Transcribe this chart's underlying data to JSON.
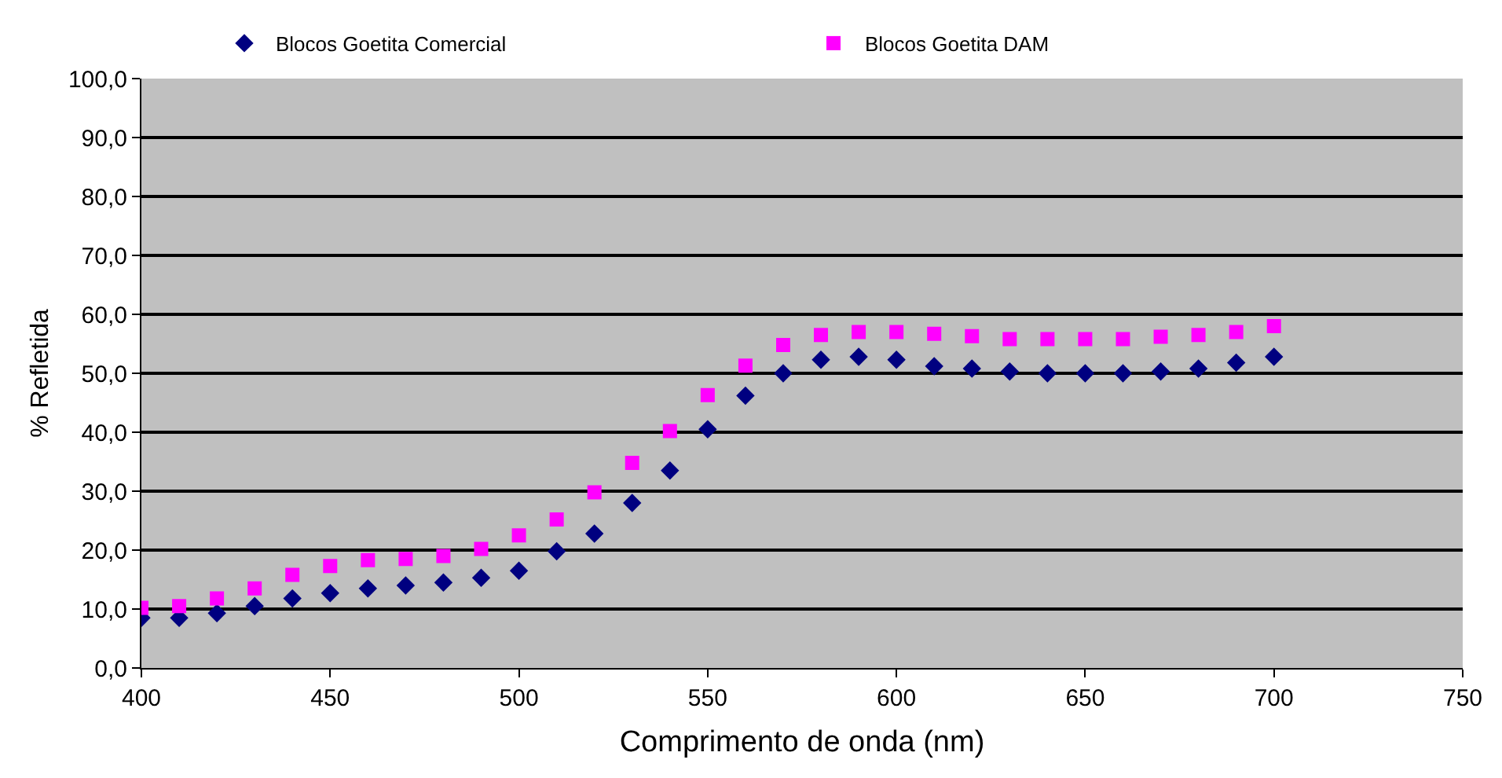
{
  "chart_data": {
    "type": "scatter",
    "xlabel": "Comprimento de onda (nm)",
    "ylabel": "% Refletida",
    "x": [
      400,
      410,
      420,
      430,
      440,
      450,
      460,
      470,
      480,
      490,
      500,
      510,
      520,
      530,
      540,
      550,
      560,
      570,
      580,
      590,
      600,
      610,
      620,
      630,
      640,
      650,
      660,
      670,
      680,
      690,
      700
    ],
    "series": [
      {
        "name": "Blocos Goetita Comercial",
        "color": "#000080",
        "marker": "diamond",
        "values": [
          8.5,
          8.5,
          9.3,
          10.5,
          11.8,
          12.7,
          13.5,
          14,
          14.5,
          15.3,
          16.5,
          19.8,
          22.8,
          28,
          33.5,
          40.5,
          46.2,
          50,
          52.3,
          52.8,
          52.3,
          51.2,
          50.8,
          50.3,
          50,
          50,
          50,
          50.3,
          50.8,
          51.8,
          52.8
        ]
      },
      {
        "name": "Blocos Goetita DAM",
        "color": "#ff00ff",
        "marker": "square",
        "values": [
          10.2,
          10.5,
          11.8,
          13.5,
          15.8,
          17.3,
          18.3,
          18.5,
          19,
          20.2,
          22.5,
          25.2,
          29.8,
          34.8,
          40.2,
          46.3,
          51.3,
          54.8,
          56.5,
          57,
          57,
          56.7,
          56.3,
          55.8,
          55.8,
          55.8,
          55.8,
          56.2,
          56.5,
          57,
          58
        ]
      }
    ],
    "xlim": [
      400,
      750
    ],
    "xticks": [
      400,
      450,
      500,
      550,
      600,
      650,
      700,
      750
    ],
    "ylim": [
      0,
      100
    ],
    "yticks": [
      {
        "value": 0,
        "label": "0,0"
      },
      {
        "value": 10,
        "label": "10,0"
      },
      {
        "value": 20,
        "label": "20,0"
      },
      {
        "value": 30,
        "label": "30,0"
      },
      {
        "value": 40,
        "label": "40,0"
      },
      {
        "value": 50,
        "label": "50,0"
      },
      {
        "value": 60,
        "label": "60,0"
      },
      {
        "value": 70,
        "label": "70,0"
      },
      {
        "value": 80,
        "label": "80,0"
      },
      {
        "value": 90,
        "label": "90,0"
      },
      {
        "value": 100,
        "label": "100,0"
      }
    ],
    "grid": "y",
    "legend": "top"
  }
}
